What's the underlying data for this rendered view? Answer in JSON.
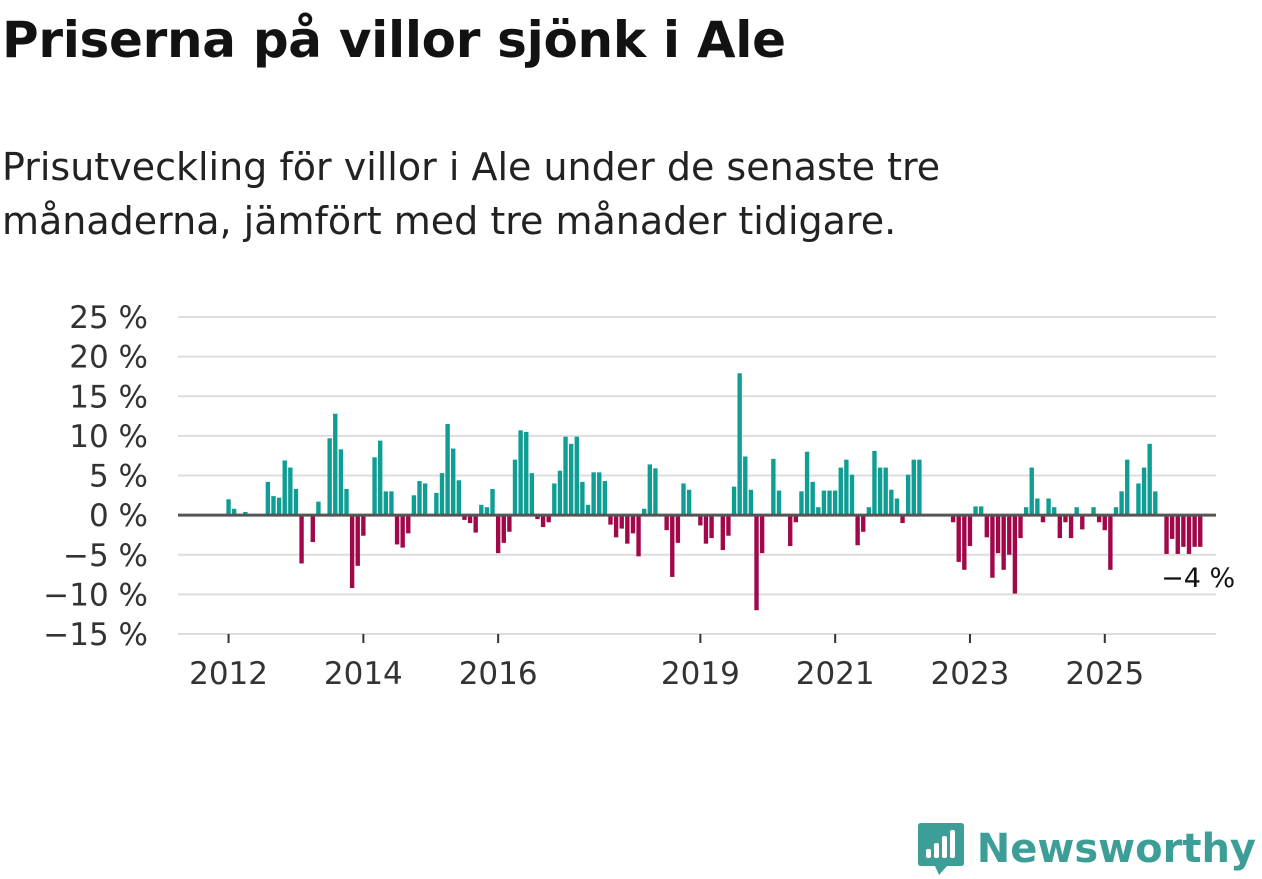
{
  "title": "Priserna på villor sjönk i Ale",
  "subtitle": "Prisutveckling för villor i Ale under de senaste tre månaderna, jämfört med tre månader tidigare.",
  "brand": {
    "name": "Newsworthy",
    "icon": "newsworthy-logo-icon"
  },
  "colors": {
    "positive": "#0f9e94",
    "negative": "#a0084a",
    "grid": "#dddddd",
    "zero": "#555555",
    "brand": "#3d9e98"
  },
  "chart_data": {
    "type": "bar",
    "y_ticks": [
      {
        "value": 25,
        "label": "25 %"
      },
      {
        "value": 20,
        "label": "20 %"
      },
      {
        "value": 15,
        "label": "15 %"
      },
      {
        "value": 10,
        "label": "10 %"
      },
      {
        "value": 5,
        "label": "5 %"
      },
      {
        "value": 0,
        "label": "0 %"
      },
      {
        "value": -5,
        "label": "−5 %"
      },
      {
        "value": -10,
        "label": "−10 %"
      },
      {
        "value": -15,
        "label": "−15 %"
      }
    ],
    "x_ticks": [
      {
        "value": 2012,
        "label": "2012"
      },
      {
        "value": 2014,
        "label": "2014"
      },
      {
        "value": 2016,
        "label": "2016"
      },
      {
        "value": 2019,
        "label": "2019"
      },
      {
        "value": 2021,
        "label": "2021"
      },
      {
        "value": 2023,
        "label": "2023"
      },
      {
        "value": 2025,
        "label": "2025"
      }
    ],
    "ylim": [
      -15,
      25
    ],
    "xlim": [
      2011.25,
      2026.65
    ],
    "x_start": 2011.25,
    "step": 0.08333,
    "values": [
      0,
      0,
      0,
      0,
      0,
      0,
      0,
      0,
      0,
      2,
      0.8,
      0,
      0.4,
      0,
      0,
      0,
      4.2,
      2.4,
      2.2,
      6.9,
      6,
      3.3,
      -6.1,
      0,
      -3.4,
      1.7,
      0,
      9.7,
      12.8,
      8.3,
      3.3,
      -9.2,
      -6.4,
      -2.6,
      0,
      7.3,
      9.4,
      3,
      3,
      -3.7,
      -4.1,
      -2.3,
      2.5,
      4.3,
      4,
      0,
      2.8,
      5.3,
      11.5,
      8.4,
      4.4,
      -0.6,
      -1,
      -2.2,
      1.3,
      1,
      3.3,
      -4.8,
      -3.5,
      -2.1,
      7,
      10.7,
      10.5,
      5.3,
      -0.5,
      -1.5,
      -0.9,
      4,
      5.6,
      9.9,
      9,
      9.9,
      4.2,
      1.3,
      5.4,
      5.4,
      4.3,
      -1.2,
      -2.8,
      -1.7,
      -3.6,
      -2.3,
      -5.2,
      0.8,
      6.4,
      5.9,
      0,
      -1.9,
      -7.8,
      -3.5,
      4,
      3.2,
      0,
      -1.3,
      -3.6,
      -2.9,
      0,
      -4.4,
      -2.6,
      3.6,
      17.9,
      7.4,
      3.2,
      -12,
      -4.8,
      0,
      7.1,
      3.1,
      0,
      -3.9,
      -0.9,
      3,
      8,
      4.2,
      1,
      3.1,
      3.1,
      3.1,
      6,
      7,
      5.1,
      -3.8,
      -2.1,
      1,
      8.1,
      6,
      6,
      3.2,
      2.1,
      -1,
      5.1,
      7,
      7,
      0,
      0,
      0,
      0,
      0,
      -0.9,
      -5.9,
      -6.9,
      -3.9,
      1.1,
      1.1,
      -2.8,
      -7.9,
      -4.8,
      -6.9,
      -5,
      -9.9,
      -2.9,
      1,
      6,
      2.1,
      -0.9,
      2.1,
      1,
      -2.9,
      -0.9,
      -2.9,
      1,
      -1.8,
      0,
      1,
      -0.9,
      -1.9,
      -6.9,
      1,
      3,
      7,
      0,
      4,
      6,
      9,
      3,
      0,
      -4.9,
      -3,
      -4.9,
      -4,
      -4.9,
      -4,
      -4
    ],
    "end_label": "−4 %",
    "end_value": -4
  }
}
